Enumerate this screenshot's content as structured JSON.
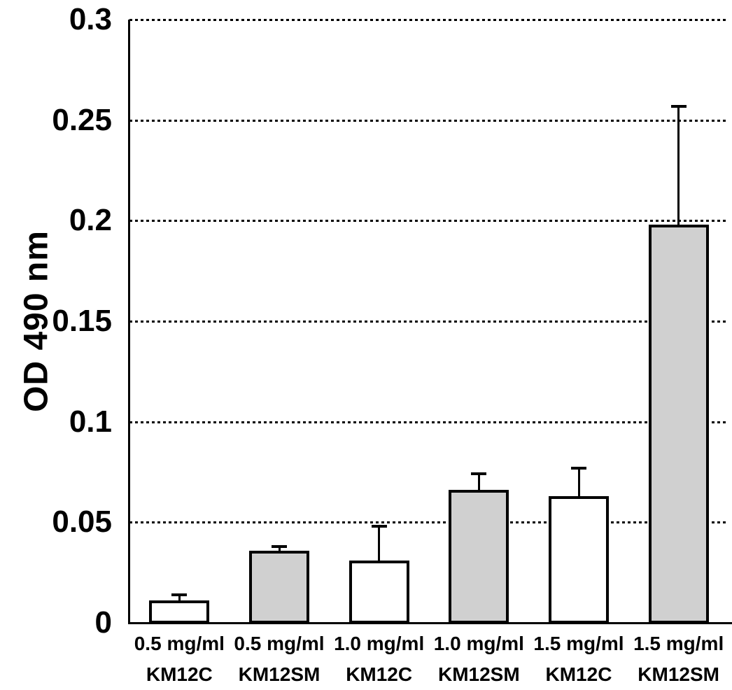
{
  "chart_data": {
    "type": "bar",
    "title": "",
    "ylabel": "OD 490 nm",
    "xlabel": "",
    "ylim": [
      0,
      0.3
    ],
    "yticks": [
      {
        "label": "0",
        "value": 0
      },
      {
        "label": "0.05",
        "value": 0.05
      },
      {
        "label": "0.1",
        "value": 0.1
      },
      {
        "label": "0.15",
        "value": 0.15
      },
      {
        "label": "0.2",
        "value": 0.2
      },
      {
        "label": "0.25",
        "value": 0.25
      },
      {
        "label": "0.3",
        "value": 0.3
      }
    ],
    "grid": "horizontal-dotted",
    "legend_position": "none",
    "categories": [
      {
        "line1": "0.5 mg/ml",
        "line2": "KM12C"
      },
      {
        "line1": "0.5 mg/ml",
        "line2": "KM12SM"
      },
      {
        "line1": "1.0 mg/ml",
        "line2": "KM12C"
      },
      {
        "line1": "1.0 mg/ml",
        "line2": "KM12SM"
      },
      {
        "line1": "1.5 mg/ml",
        "line2": "KM12C"
      },
      {
        "line1": "1.5 mg/ml",
        "line2": "KM12SM"
      }
    ],
    "values": [
      0.011,
      0.036,
      0.031,
      0.066,
      0.063,
      0.198
    ],
    "errors_upper": [
      0.003,
      0.002,
      0.017,
      0.008,
      0.014,
      0.059
    ],
    "bar_fills": [
      "#ffffff",
      "#d0d0d0",
      "#ffffff",
      "#d0d0d0",
      "#ffffff",
      "#d0d0d0"
    ],
    "series_fill_key": {
      "KM12C": "#ffffff",
      "KM12SM": "#d0d0d0"
    },
    "colors": {
      "axis": "#000000",
      "bar_border": "#000000",
      "gridline": "#000000",
      "text": "#000000",
      "background": "#ffffff"
    }
  }
}
